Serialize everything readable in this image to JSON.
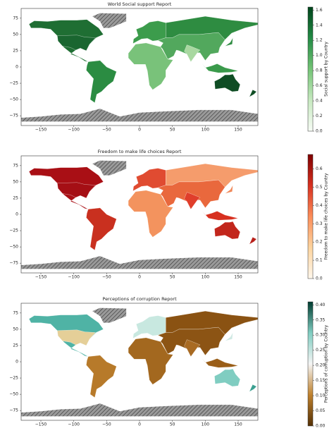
{
  "chart_data": [
    {
      "type": "choropleth",
      "title": "World Social support Report",
      "xlim": [
        -180,
        180
      ],
      "ylim": [
        -90,
        90
      ],
      "xticks": [
        {
          "value": -150,
          "label": "−150"
        },
        {
          "value": -100,
          "label": "−100"
        },
        {
          "value": -50,
          "label": "−50"
        },
        0,
        50,
        100,
        150
      ],
      "yticks": [
        {
          "value": -75,
          "label": "−75"
        },
        {
          "value": -50,
          "label": "−50"
        },
        {
          "value": -25,
          "label": "−25"
        },
        0,
        25,
        50,
        75
      ],
      "colorbar": {
        "label": "Social support by Country",
        "lim": [
          0,
          1.64
        ],
        "ticks": [
          {
            "value": 0,
            "label": "0.0"
          },
          0.2,
          0.4,
          0.6,
          0.8,
          {
            "value": 1,
            "label": "1.0"
          },
          1.2,
          1.4,
          1.6
        ],
        "colors": [
          "#f7fcf5",
          "#c7e9c0",
          "#74c476",
          "#238b45",
          "#00441b"
        ]
      }
    },
    {
      "type": "choropleth",
      "title": "Freedom to make life choices Report",
      "xlim": [
        -180,
        180
      ],
      "ylim": [
        -90,
        90
      ],
      "xticks": [
        {
          "value": -150,
          "label": "−150"
        },
        {
          "value": -100,
          "label": "−100"
        },
        {
          "value": -50,
          "label": "−50"
        },
        0,
        50,
        100,
        150
      ],
      "yticks": [
        {
          "value": -75,
          "label": "−75"
        },
        {
          "value": -50,
          "label": "−50"
        },
        {
          "value": -25,
          "label": "−25"
        },
        0,
        25,
        50,
        75
      ],
      "colorbar": {
        "label": "Freedom to make life choices by Country",
        "lim": [
          0,
          0.68
        ],
        "ticks": [
          {
            "value": 0,
            "label": "0.0"
          },
          0.1,
          0.2,
          0.3,
          0.4,
          0.5,
          0.6
        ],
        "colors": [
          "#fff7ec",
          "#fdd49e",
          "#fc8d59",
          "#d7301f",
          "#7f0000"
        ]
      }
    },
    {
      "type": "choropleth",
      "title": "Perceptions of corruption Report",
      "xlim": [
        -180,
        180
      ],
      "ylim": [
        -90,
        90
      ],
      "xticks": [
        {
          "value": -150,
          "label": "−150"
        },
        {
          "value": -100,
          "label": "−100"
        },
        {
          "value": -50,
          "label": "−50"
        },
        0,
        50,
        100,
        150
      ],
      "yticks": [
        {
          "value": -75,
          "label": "−75"
        },
        {
          "value": -50,
          "label": "−50"
        },
        {
          "value": -25,
          "label": "−25"
        },
        0,
        25,
        50,
        75
      ],
      "colorbar": {
        "label": "Perceptions of corruption by Country",
        "lim": [
          0,
          0.41
        ],
        "ticks": [
          {
            "value": 0,
            "label": "0.00"
          },
          0.05,
          {
            "value": 0.1,
            "label": "0.10"
          },
          0.15,
          {
            "value": 0.2,
            "label": "0.20"
          },
          0.25,
          {
            "value": 0.3,
            "label": "0.30"
          },
          0.35,
          {
            "value": 0.4,
            "label": "0.40"
          }
        ],
        "colors": [
          "#543005",
          "#bf812d",
          "#f5f5f5",
          "#80cdc1",
          "#003c30"
        ]
      }
    }
  ]
}
